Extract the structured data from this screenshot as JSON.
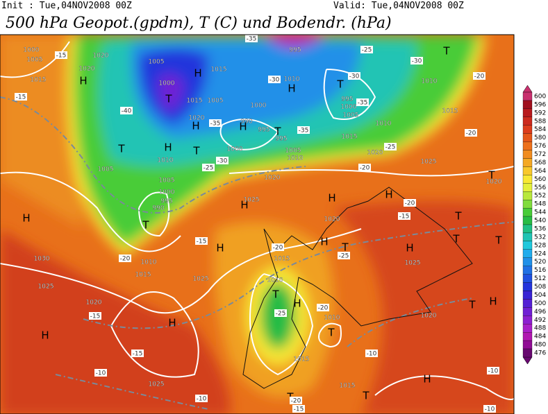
{
  "header": {
    "init": "Init : Tue,04NOV2008 00Z",
    "valid": "Valid: Tue,04NOV2008 00Z",
    "title": "500 hPa Geopot.(gpdm), T (C) und Bodendr. (hPa)"
  },
  "legend": {
    "levels": [
      600,
      596,
      592,
      588,
      584,
      580,
      576,
      572,
      568,
      564,
      560,
      556,
      552,
      548,
      544,
      540,
      536,
      532,
      528,
      524,
      520,
      516,
      512,
      508,
      504,
      500,
      496,
      492,
      488,
      484,
      480,
      476
    ],
    "colors": [
      "#c8306e",
      "#a0101e",
      "#b81a1e",
      "#cc2a1e",
      "#dc3c1c",
      "#e4561a",
      "#ec701c",
      "#f08c20",
      "#f4a824",
      "#f8c82c",
      "#f8e834",
      "#e4f03c",
      "#b8e83c",
      "#80dc3c",
      "#48cc38",
      "#28bc44",
      "#20c084",
      "#20c4b4",
      "#20c8dc",
      "#20acec",
      "#2090e8",
      "#2070e4",
      "#2050e0",
      "#2434dc",
      "#3824d4",
      "#5420d4",
      "#7020d4",
      "#8c20d0",
      "#a820c8",
      "#b018b0",
      "#900c94",
      "#680870"
    ]
  },
  "labels": [
    "1000",
    "1005",
    "-15",
    "1015",
    "-15",
    "1020",
    "1020",
    "H",
    "1005",
    "1000",
    "T",
    "-40",
    "H",
    "1015",
    "1005",
    "1015",
    "1020",
    "H",
    "-35",
    "990",
    "H",
    "1000",
    "995",
    "T",
    "995",
    "-35",
    "1010",
    "H",
    "-30",
    "T",
    "H",
    "T",
    "1000",
    "-30",
    "-25",
    "1005",
    "1010",
    "1005",
    "1000",
    "995",
    "990",
    "T",
    "-35",
    "995",
    "-25",
    "-30",
    "T",
    "T",
    "-30",
    "-35",
    "995",
    "1000",
    "1005",
    "1010",
    "1015",
    "1010",
    "-20",
    "-20",
    "1015",
    "1020",
    "-25",
    "1005",
    "1010",
    "1020",
    "1025",
    "-20",
    "T",
    "1020",
    "H",
    "H",
    "H",
    "H",
    "1025",
    "-20",
    "-15",
    "T",
    "1020",
    "-15",
    "H",
    "H",
    "T",
    "H",
    "T",
    "T",
    "-20",
    "-25",
    "1015",
    "1030",
    "-20",
    "1010",
    "1015",
    "1025",
    "1025",
    "1025",
    "1010",
    "T",
    "H",
    "-20",
    "-25",
    "1010",
    "T",
    "1020",
    "-15",
    "H",
    "T",
    "H",
    "1020",
    "H",
    "-15",
    "-10",
    "-10",
    "1015",
    "1025",
    "H",
    "-10",
    "1015",
    "T",
    "T",
    "-20",
    "-10",
    "-15",
    "-10"
  ]
}
